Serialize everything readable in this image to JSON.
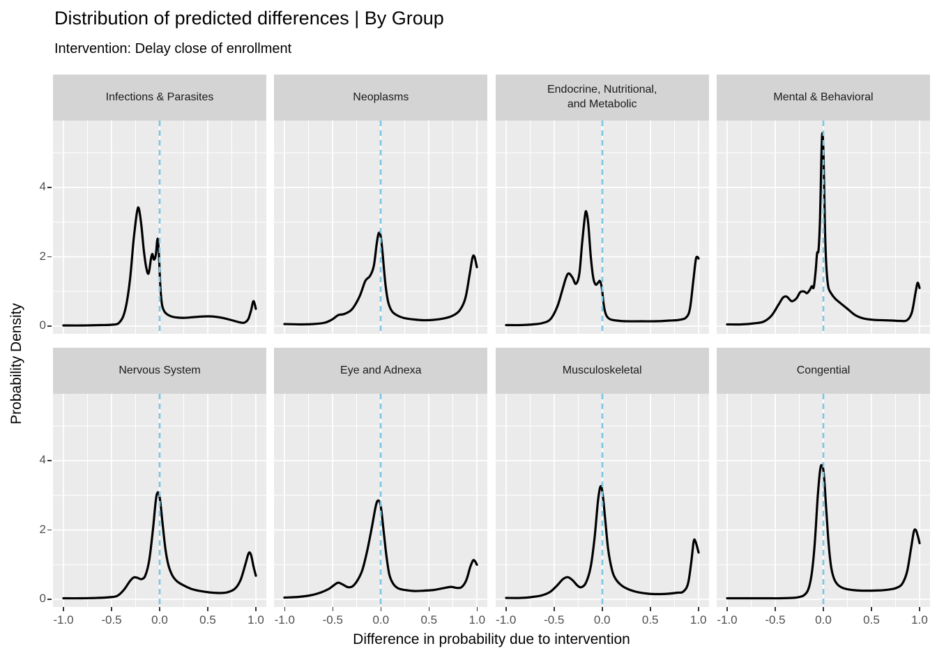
{
  "header": {
    "title": "Distribution of predicted differences | By Group",
    "subtitle": "Intervention: Delay close of enrollment"
  },
  "axes": {
    "x_label": "Difference in probability due to intervention",
    "y_label": "Probability Density",
    "x_tick_labels": [
      "-1.0",
      "-0.5",
      "0.0",
      "0.5",
      "1.0"
    ],
    "x_tick_values": [
      -1,
      -0.5,
      0,
      0.5,
      1
    ],
    "y_tick_labels": [
      "0",
      "2",
      "4"
    ],
    "y_tick_values": [
      0,
      2,
      4
    ]
  },
  "colors": {
    "panel_bg": "#EBEBEB",
    "strip_bg": "#D4D4D4",
    "grid": "#FFFFFF",
    "curve": "#000000",
    "reference_line": "#7EC5E3",
    "tick_text": "#4D4D4D",
    "strip_text": "#1A1A1A",
    "tick_mark": "#333333"
  },
  "chart_data": {
    "type": "line",
    "title": "Distribution of predicted differences | By Group",
    "subtitle": "Intervention: Delay close of enrollment",
    "xlabel": "Difference in probability due to intervention",
    "ylabel": "Probability Density",
    "xlim": [
      -1,
      1
    ],
    "ylim": [
      0,
      5.93
    ],
    "x_ticks": [
      -1,
      -0.5,
      0,
      0.5,
      1
    ],
    "y_ticks": [
      0,
      2,
      4
    ],
    "x_minor_ticks": [
      -0.75,
      -0.25,
      0.25,
      0.75
    ],
    "y_minor_ticks": [
      1,
      3,
      5
    ],
    "grid": "on",
    "layout": "2 rows x 4 cols facets",
    "reference_line_x": 0,
    "panels": [
      {
        "title": "Infections & Parasites",
        "points": [
          [
            -1,
            0.02
          ],
          [
            -0.8,
            0.02
          ],
          [
            -0.62,
            0.03
          ],
          [
            -0.5,
            0.04
          ],
          [
            -0.42,
            0.1
          ],
          [
            -0.36,
            0.45
          ],
          [
            -0.31,
            1.3
          ],
          [
            -0.27,
            2.5
          ],
          [
            -0.235,
            3.3
          ],
          [
            -0.215,
            3.38
          ],
          [
            -0.19,
            2.9
          ],
          [
            -0.165,
            2.2
          ],
          [
            -0.14,
            1.7
          ],
          [
            -0.115,
            1.52
          ],
          [
            -0.09,
            1.95
          ],
          [
            -0.075,
            2.08
          ],
          [
            -0.06,
            1.92
          ],
          [
            -0.04,
            2.05
          ],
          [
            -0.022,
            2.52
          ],
          [
            -0.008,
            2.1
          ],
          [
            0.008,
            1.1
          ],
          [
            0.025,
            0.62
          ],
          [
            0.05,
            0.42
          ],
          [
            0.09,
            0.32
          ],
          [
            0.15,
            0.26
          ],
          [
            0.25,
            0.24
          ],
          [
            0.35,
            0.26
          ],
          [
            0.45,
            0.28
          ],
          [
            0.55,
            0.28
          ],
          [
            0.65,
            0.24
          ],
          [
            0.75,
            0.17
          ],
          [
            0.83,
            0.11
          ],
          [
            0.88,
            0.1
          ],
          [
            0.92,
            0.2
          ],
          [
            0.95,
            0.45
          ],
          [
            0.975,
            0.72
          ],
          [
            1,
            0.5
          ]
        ]
      },
      {
        "title": "Neoplasms",
        "points": [
          [
            -1,
            0.06
          ],
          [
            -0.85,
            0.05
          ],
          [
            -0.7,
            0.06
          ],
          [
            -0.58,
            0.1
          ],
          [
            -0.5,
            0.2
          ],
          [
            -0.44,
            0.32
          ],
          [
            -0.38,
            0.35
          ],
          [
            -0.3,
            0.48
          ],
          [
            -0.22,
            0.85
          ],
          [
            -0.16,
            1.3
          ],
          [
            -0.11,
            1.45
          ],
          [
            -0.07,
            1.75
          ],
          [
            -0.04,
            2.4
          ],
          [
            -0.02,
            2.68
          ],
          [
            0,
            2.6
          ],
          [
            0.02,
            2.1
          ],
          [
            0.05,
            1.2
          ],
          [
            0.08,
            0.68
          ],
          [
            0.12,
            0.42
          ],
          [
            0.18,
            0.3
          ],
          [
            0.25,
            0.23
          ],
          [
            0.35,
            0.19
          ],
          [
            0.45,
            0.17
          ],
          [
            0.55,
            0.18
          ],
          [
            0.65,
            0.22
          ],
          [
            0.74,
            0.29
          ],
          [
            0.82,
            0.45
          ],
          [
            0.88,
            0.8
          ],
          [
            0.925,
            1.5
          ],
          [
            0.955,
            1.98
          ],
          [
            0.975,
            2.0
          ],
          [
            1,
            1.7
          ]
        ]
      },
      {
        "title": "Endocrine, Nutritional,\nand Metabolic",
        "points": [
          [
            -1,
            0.03
          ],
          [
            -0.85,
            0.03
          ],
          [
            -0.72,
            0.05
          ],
          [
            -0.62,
            0.09
          ],
          [
            -0.54,
            0.2
          ],
          [
            -0.47,
            0.55
          ],
          [
            -0.42,
            1.0
          ],
          [
            -0.38,
            1.38
          ],
          [
            -0.35,
            1.52
          ],
          [
            -0.31,
            1.4
          ],
          [
            -0.275,
            1.22
          ],
          [
            -0.24,
            1.5
          ],
          [
            -0.21,
            2.4
          ],
          [
            -0.18,
            3.2
          ],
          [
            -0.165,
            3.28
          ],
          [
            -0.145,
            2.9
          ],
          [
            -0.12,
            2.0
          ],
          [
            -0.095,
            1.4
          ],
          [
            -0.07,
            1.2
          ],
          [
            -0.045,
            1.25
          ],
          [
            -0.025,
            1.3
          ],
          [
            -0.005,
            1.1
          ],
          [
            0.015,
            0.6
          ],
          [
            0.04,
            0.32
          ],
          [
            0.08,
            0.2
          ],
          [
            0.15,
            0.16
          ],
          [
            0.25,
            0.14
          ],
          [
            0.4,
            0.14
          ],
          [
            0.55,
            0.14
          ],
          [
            0.7,
            0.16
          ],
          [
            0.8,
            0.18
          ],
          [
            0.87,
            0.25
          ],
          [
            0.91,
            0.5
          ],
          [
            0.945,
            1.3
          ],
          [
            0.97,
            1.9
          ],
          [
            0.985,
            2.0
          ],
          [
            1,
            1.95
          ]
        ]
      },
      {
        "title": "Mental & Behavioral",
        "points": [
          [
            -1,
            0.05
          ],
          [
            -0.85,
            0.05
          ],
          [
            -0.72,
            0.08
          ],
          [
            -0.62,
            0.13
          ],
          [
            -0.54,
            0.3
          ],
          [
            -0.47,
            0.6
          ],
          [
            -0.42,
            0.82
          ],
          [
            -0.38,
            0.85
          ],
          [
            -0.33,
            0.72
          ],
          [
            -0.28,
            0.8
          ],
          [
            -0.24,
            0.98
          ],
          [
            -0.2,
            1.0
          ],
          [
            -0.17,
            0.95
          ],
          [
            -0.14,
            1.05
          ],
          [
            -0.12,
            1.15
          ],
          [
            -0.1,
            1.12
          ],
          [
            -0.08,
            1.6
          ],
          [
            -0.065,
            2.1
          ],
          [
            -0.05,
            2.2
          ],
          [
            -0.035,
            3.1
          ],
          [
            -0.02,
            4.9
          ],
          [
            -0.01,
            5.57
          ],
          [
            0.002,
            4.9
          ],
          [
            0.015,
            3.0
          ],
          [
            0.03,
            1.8
          ],
          [
            0.05,
            1.15
          ],
          [
            0.08,
            0.95
          ],
          [
            0.12,
            0.8
          ],
          [
            0.17,
            0.68
          ],
          [
            0.25,
            0.5
          ],
          [
            0.33,
            0.32
          ],
          [
            0.42,
            0.22
          ],
          [
            0.52,
            0.18
          ],
          [
            0.62,
            0.17
          ],
          [
            0.72,
            0.16
          ],
          [
            0.8,
            0.15
          ],
          [
            0.87,
            0.17
          ],
          [
            0.92,
            0.4
          ],
          [
            0.96,
            1.0
          ],
          [
            0.98,
            1.25
          ],
          [
            1,
            1.1
          ]
        ]
      },
      {
        "title": "Nervous System",
        "points": [
          [
            -1,
            0.03
          ],
          [
            -0.82,
            0.03
          ],
          [
            -0.65,
            0.04
          ],
          [
            -0.52,
            0.06
          ],
          [
            -0.44,
            0.1
          ],
          [
            -0.37,
            0.28
          ],
          [
            -0.31,
            0.52
          ],
          [
            -0.27,
            0.63
          ],
          [
            -0.23,
            0.62
          ],
          [
            -0.19,
            0.58
          ],
          [
            -0.15,
            0.68
          ],
          [
            -0.11,
            1.1
          ],
          [
            -0.07,
            2.0
          ],
          [
            -0.04,
            2.85
          ],
          [
            -0.02,
            3.08
          ],
          [
            0,
            2.95
          ],
          [
            0.03,
            2.2
          ],
          [
            0.06,
            1.45
          ],
          [
            0.09,
            1.0
          ],
          [
            0.13,
            0.7
          ],
          [
            0.18,
            0.52
          ],
          [
            0.25,
            0.4
          ],
          [
            0.33,
            0.3
          ],
          [
            0.42,
            0.24
          ],
          [
            0.52,
            0.2
          ],
          [
            0.62,
            0.18
          ],
          [
            0.7,
            0.2
          ],
          [
            0.78,
            0.3
          ],
          [
            0.84,
            0.55
          ],
          [
            0.89,
            1.0
          ],
          [
            0.925,
            1.33
          ],
          [
            0.95,
            1.28
          ],
          [
            0.975,
            0.95
          ],
          [
            1,
            0.68
          ]
        ]
      },
      {
        "title": "Eye and Adnexa",
        "points": [
          [
            -1,
            0.05
          ],
          [
            -0.85,
            0.07
          ],
          [
            -0.72,
            0.12
          ],
          [
            -0.62,
            0.2
          ],
          [
            -0.54,
            0.3
          ],
          [
            -0.48,
            0.42
          ],
          [
            -0.44,
            0.48
          ],
          [
            -0.39,
            0.42
          ],
          [
            -0.34,
            0.35
          ],
          [
            -0.29,
            0.38
          ],
          [
            -0.24,
            0.55
          ],
          [
            -0.19,
            0.85
          ],
          [
            -0.14,
            1.4
          ],
          [
            -0.09,
            2.1
          ],
          [
            -0.05,
            2.7
          ],
          [
            -0.025,
            2.85
          ],
          [
            0,
            2.7
          ],
          [
            0.03,
            2.0
          ],
          [
            0.06,
            1.25
          ],
          [
            0.09,
            0.72
          ],
          [
            0.13,
            0.45
          ],
          [
            0.18,
            0.32
          ],
          [
            0.25,
            0.27
          ],
          [
            0.35,
            0.24
          ],
          [
            0.45,
            0.25
          ],
          [
            0.55,
            0.27
          ],
          [
            0.65,
            0.32
          ],
          [
            0.73,
            0.36
          ],
          [
            0.79,
            0.33
          ],
          [
            0.84,
            0.35
          ],
          [
            0.89,
            0.55
          ],
          [
            0.93,
            0.92
          ],
          [
            0.96,
            1.12
          ],
          [
            0.98,
            1.1
          ],
          [
            1,
            1.0
          ]
        ]
      },
      {
        "title": "Musculoskeletal",
        "points": [
          [
            -1,
            0.04
          ],
          [
            -0.85,
            0.04
          ],
          [
            -0.72,
            0.07
          ],
          [
            -0.62,
            0.12
          ],
          [
            -0.54,
            0.22
          ],
          [
            -0.47,
            0.4
          ],
          [
            -0.41,
            0.58
          ],
          [
            -0.36,
            0.64
          ],
          [
            -0.31,
            0.55
          ],
          [
            -0.26,
            0.4
          ],
          [
            -0.22,
            0.35
          ],
          [
            -0.17,
            0.48
          ],
          [
            -0.12,
            0.95
          ],
          [
            -0.08,
            1.8
          ],
          [
            -0.045,
            2.85
          ],
          [
            -0.02,
            3.25
          ],
          [
            0,
            3.1
          ],
          [
            0.03,
            2.3
          ],
          [
            0.06,
            1.45
          ],
          [
            0.1,
            0.85
          ],
          [
            0.14,
            0.58
          ],
          [
            0.2,
            0.4
          ],
          [
            0.28,
            0.28
          ],
          [
            0.38,
            0.2
          ],
          [
            0.48,
            0.16
          ],
          [
            0.58,
            0.15
          ],
          [
            0.68,
            0.16
          ],
          [
            0.78,
            0.19
          ],
          [
            0.84,
            0.22
          ],
          [
            0.89,
            0.45
          ],
          [
            0.925,
            1.1
          ],
          [
            0.95,
            1.68
          ],
          [
            0.97,
            1.65
          ],
          [
            1,
            1.35
          ]
        ]
      },
      {
        "title": "Congential",
        "points": [
          [
            -1,
            0.03
          ],
          [
            -0.8,
            0.03
          ],
          [
            -0.6,
            0.03
          ],
          [
            -0.45,
            0.03
          ],
          [
            -0.33,
            0.04
          ],
          [
            -0.26,
            0.06
          ],
          [
            -0.2,
            0.12
          ],
          [
            -0.155,
            0.3
          ],
          [
            -0.12,
            0.75
          ],
          [
            -0.09,
            1.6
          ],
          [
            -0.06,
            2.9
          ],
          [
            -0.035,
            3.7
          ],
          [
            -0.015,
            3.87
          ],
          [
            0.005,
            3.6
          ],
          [
            0.03,
            2.6
          ],
          [
            0.055,
            1.6
          ],
          [
            0.08,
            0.95
          ],
          [
            0.11,
            0.6
          ],
          [
            0.15,
            0.42
          ],
          [
            0.21,
            0.32
          ],
          [
            0.3,
            0.27
          ],
          [
            0.4,
            0.25
          ],
          [
            0.5,
            0.25
          ],
          [
            0.6,
            0.26
          ],
          [
            0.68,
            0.28
          ],
          [
            0.76,
            0.33
          ],
          [
            0.82,
            0.45
          ],
          [
            0.87,
            0.8
          ],
          [
            0.91,
            1.45
          ],
          [
            0.94,
            1.95
          ],
          [
            0.96,
            2.0
          ],
          [
            0.98,
            1.85
          ],
          [
            1,
            1.62
          ]
        ]
      }
    ]
  }
}
